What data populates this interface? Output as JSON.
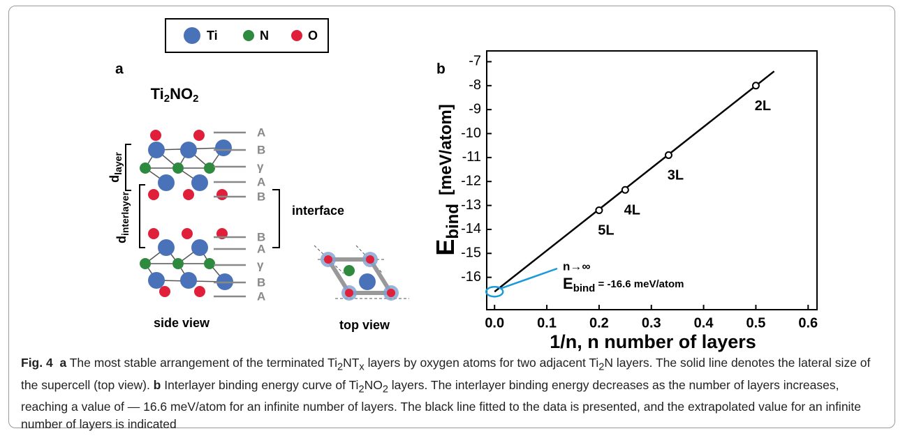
{
  "legend": {
    "items": [
      "Ti",
      "N",
      "O"
    ]
  },
  "panel_a": {
    "letter": "a",
    "title": [
      "Ti",
      "2",
      "NO",
      "2"
    ],
    "layer_labels": [
      "A",
      "B",
      "γ",
      "A",
      "B",
      "B",
      "A",
      "γ",
      "B",
      "A"
    ],
    "d_layer": [
      "d",
      "layer"
    ],
    "d_interlayer": [
      "d",
      "interlayer"
    ],
    "interface": "interface",
    "side_view": "side view",
    "top_view": "top view"
  },
  "chart_data": {
    "type": "scatter",
    "letter": "b",
    "x": [
      0.5,
      0.333,
      0.25,
      0.2
    ],
    "values": [
      -8.0,
      -10.9,
      -12.35,
      -13.2
    ],
    "point_labels": [
      "2L",
      "3L",
      "4L",
      "5L"
    ],
    "color": "#000000",
    "fit": {
      "x": [
        0,
        0.535
      ],
      "values": [
        -16.6,
        -7.4
      ]
    },
    "extrapolated": {
      "x": 0,
      "value": -16.6,
      "color": "#1a9ad6"
    },
    "annotation": [
      "n→∞",
      "E",
      "bind",
      " = -16.6 meV/atom"
    ],
    "ylabel": [
      "E",
      "bind",
      "[meV/atom]"
    ],
    "xlabel": "1/n, n number of layers",
    "xlim": [
      -0.015,
      0.617
    ],
    "ylim": [
      -17.35,
      -6.55
    ],
    "xticks": [
      {
        "value": 0,
        "label": "0.0"
      },
      0.1,
      0.2,
      0.3,
      0.4,
      0.5,
      0.6
    ],
    "yticks": [
      -7,
      -8,
      -9,
      -10,
      -11,
      -12,
      -13,
      -14,
      -15,
      -16
    ]
  },
  "caption": [
    "Fig. 4",
    "a",
    " The most stable arrangement of the terminated Ti",
    "2",
    "NT",
    "x",
    " layers by oxygen atoms for two adjacent Ti",
    "2",
    "N layers. The solid line denotes the lateral size of the supercell (top view). ",
    "b",
    " Interlayer binding energy curve of Ti",
    "2",
    "NO",
    "2",
    " layers. The interlayer binding energy decreases as the number of layers increases, reaching a value of — 16.6 meV/atom for an infinite number of layers. The black line fitted to the data is presented, and the extrapolated value for an infinite number of layers is indicated"
  ]
}
